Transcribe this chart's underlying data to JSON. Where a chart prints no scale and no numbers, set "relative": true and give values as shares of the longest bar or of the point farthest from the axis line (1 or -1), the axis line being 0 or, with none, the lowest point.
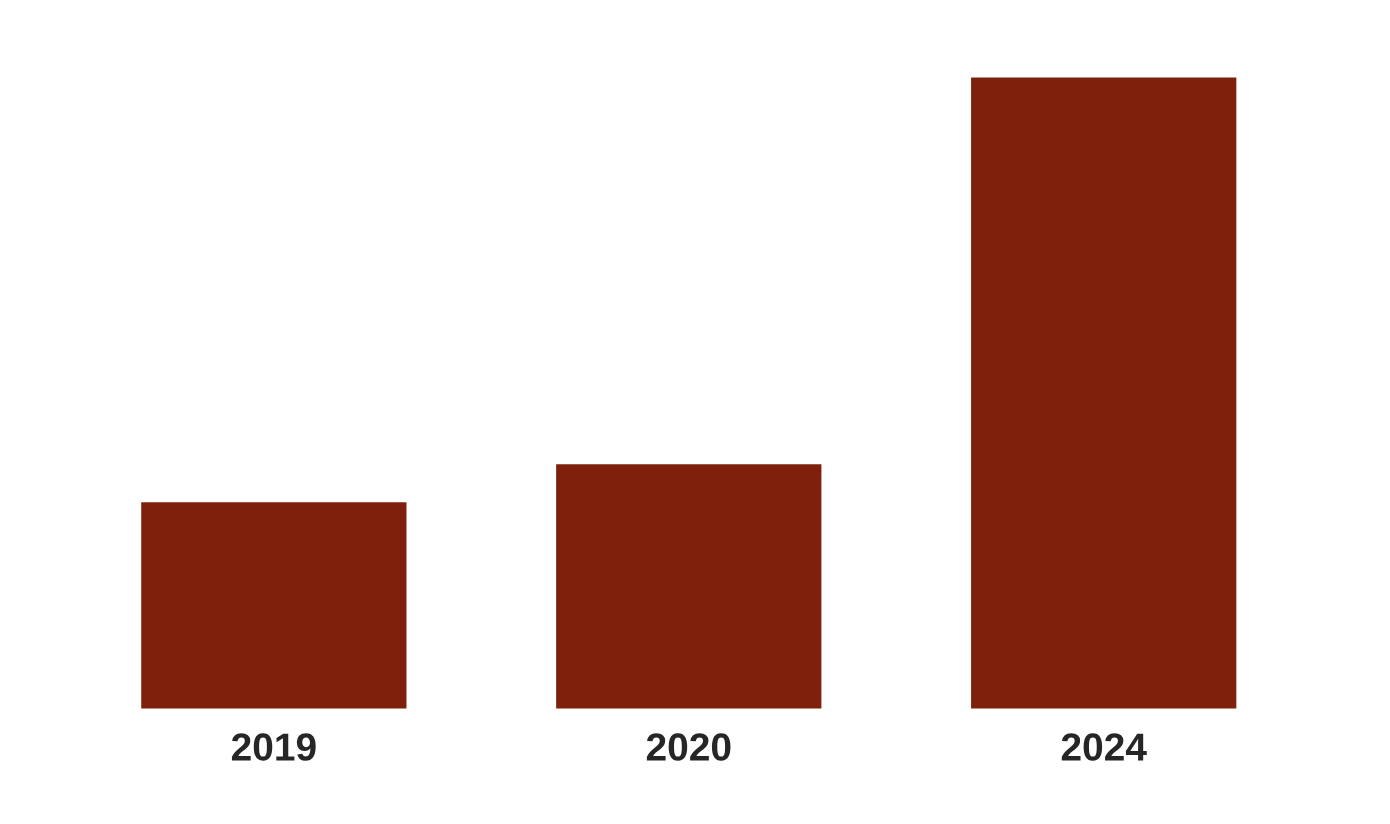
{
  "chart_data": {
    "type": "bar",
    "relative": true,
    "categories": [
      "2019",
      "2020",
      "2024"
    ],
    "values": [
      0.33,
      0.39,
      1
    ],
    "color": "#7e200c"
  }
}
